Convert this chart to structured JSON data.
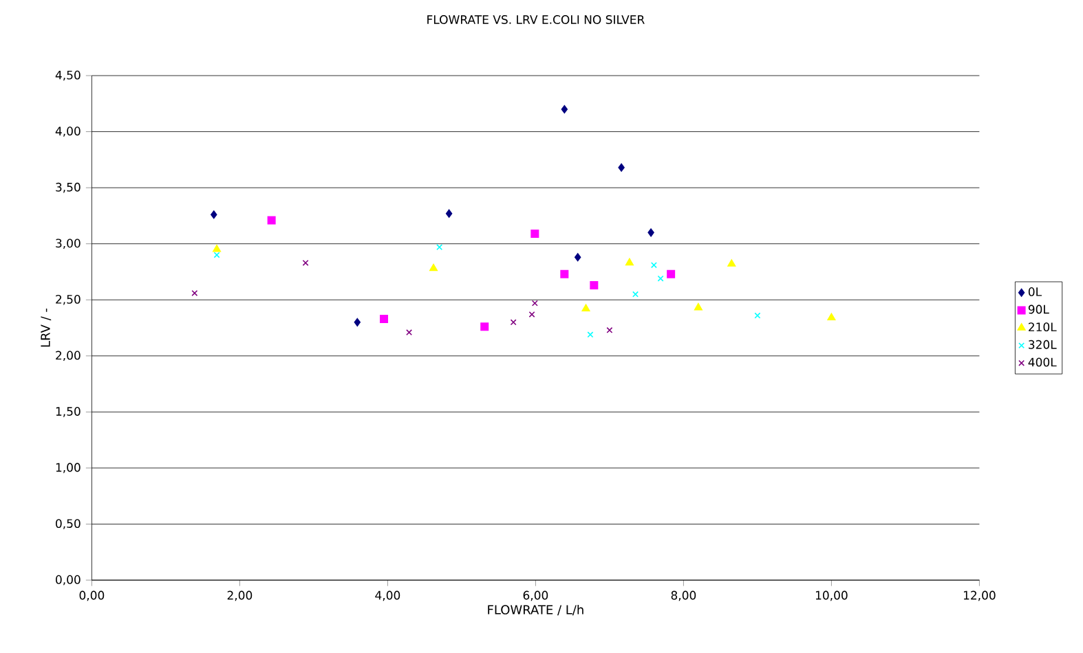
{
  "chart_data": {
    "type": "scatter",
    "title": "FLOWRATE VS. LRV E.COLI NO SILVER",
    "xlabel": "FLOWRATE / L/h",
    "ylabel": "LRV / -",
    "xlim": [
      0,
      12
    ],
    "ylim": [
      0,
      4.5
    ],
    "xticks": [
      {
        "value": 0,
        "label": "0,00"
      },
      {
        "value": 2,
        "label": "2,00"
      },
      {
        "value": 4,
        "label": "4,00"
      },
      {
        "value": 6,
        "label": "6,00"
      },
      {
        "value": 8,
        "label": "8,00"
      },
      {
        "value": 10,
        "label": "10,00"
      },
      {
        "value": 12,
        "label": "12,00"
      }
    ],
    "yticks": [
      {
        "value": 0,
        "label": "0,00"
      },
      {
        "value": 0.5,
        "label": "0,50"
      },
      {
        "value": 1,
        "label": "1,00"
      },
      {
        "value": 1.5,
        "label": "1,50"
      },
      {
        "value": 2,
        "label": "2,00"
      },
      {
        "value": 2.5,
        "label": "2,50"
      },
      {
        "value": 3,
        "label": "3,00"
      },
      {
        "value": 3.5,
        "label": "3,50"
      },
      {
        "value": 4,
        "label": "4,00"
      },
      {
        "value": 4.5,
        "label": "4,50"
      }
    ],
    "grid": "y",
    "legend": "right",
    "series": [
      {
        "name": "0L",
        "color": "#000080",
        "marker": "diamond",
        "x": [
          1.65,
          3.59,
          4.83,
          6.39,
          6.57,
          7.16,
          7.56
        ],
        "values": [
          3.26,
          2.3,
          3.27,
          4.2,
          2.88,
          3.68,
          3.1
        ]
      },
      {
        "name": "90L",
        "color": "#ff00ff",
        "marker": "square",
        "x": [
          2.43,
          3.95,
          5.31,
          5.99,
          6.39,
          6.79,
          7.83
        ],
        "values": [
          3.21,
          2.33,
          2.26,
          3.09,
          2.73,
          2.63,
          2.73
        ]
      },
      {
        "name": "210L",
        "color": "#ffff00",
        "marker": "triangle",
        "x": [
          1.69,
          4.62,
          6.68,
          7.27,
          8.2,
          8.65,
          10.0
        ],
        "values": [
          2.95,
          2.78,
          2.42,
          2.83,
          2.43,
          2.82,
          2.34
        ]
      },
      {
        "name": "320L",
        "color": "#00ffff",
        "marker": "cross",
        "x": [
          1.69,
          4.7,
          6.74,
          7.35,
          7.6,
          7.69,
          9.0
        ],
        "values": [
          2.9,
          2.97,
          2.19,
          2.55,
          2.81,
          2.69,
          2.36
        ]
      },
      {
        "name": "400L",
        "color": "#800080",
        "marker": "cross",
        "x": [
          1.39,
          2.89,
          4.29,
          5.7,
          5.95,
          5.99,
          7.0
        ],
        "values": [
          2.56,
          2.83,
          2.21,
          2.3,
          2.37,
          2.47,
          2.23
        ]
      }
    ]
  }
}
